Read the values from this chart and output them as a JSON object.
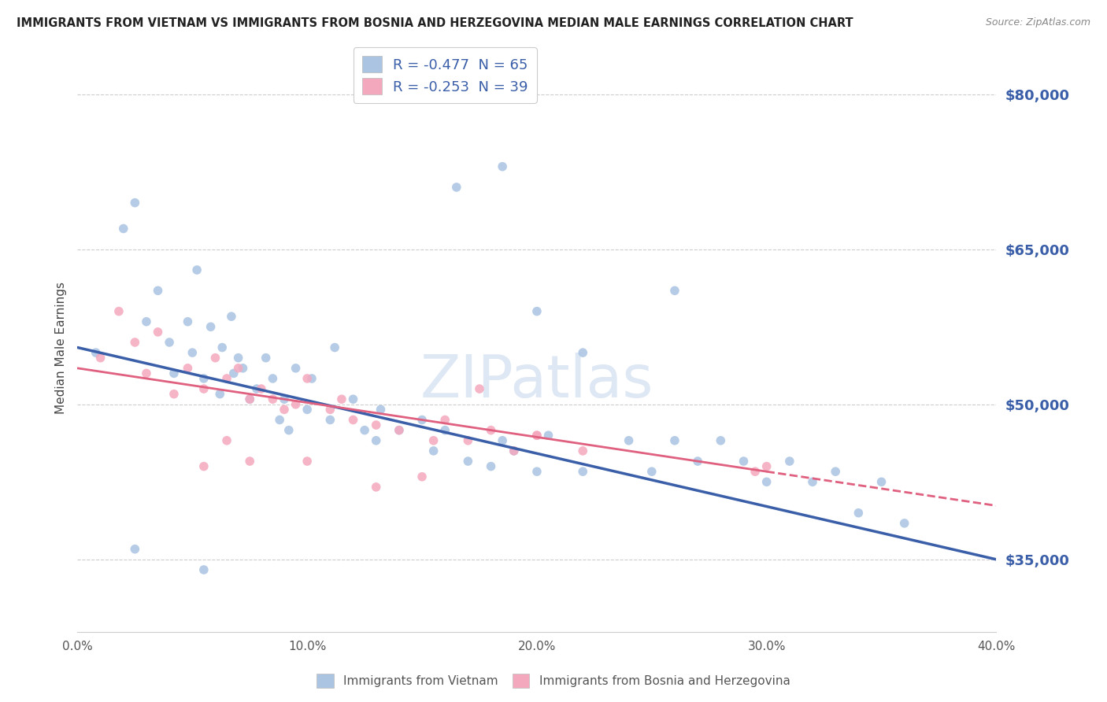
{
  "title": "IMMIGRANTS FROM VIETNAM VS IMMIGRANTS FROM BOSNIA AND HERZEGOVINA MEDIAN MALE EARNINGS CORRELATION CHART",
  "source": "Source: ZipAtlas.com",
  "ylabel": "Median Male Earnings",
  "xlabel": "",
  "legend_label1": "Immigrants from Vietnam",
  "legend_label2": "Immigrants from Bosnia and Herzegovina",
  "R1": -0.477,
  "N1": 65,
  "R2": -0.253,
  "N2": 39,
  "color1": "#aac4e2",
  "color2": "#f4a8be",
  "line_color1": "#3a5ea8",
  "line_color2": "#e06080",
  "xlim": [
    0.0,
    0.4
  ],
  "ylim": [
    28000,
    83000
  ],
  "yticks": [
    35000,
    50000,
    65000,
    80000
  ],
  "xticks": [
    0.0,
    0.1,
    0.2,
    0.3,
    0.4
  ],
  "ytick_labels": [
    "$35,000",
    "$50,000",
    "$65,000",
    "$80,000"
  ],
  "xtick_labels": [
    "0.0%",
    "10.0%",
    "20.0%",
    "30.0%",
    "40.0%"
  ],
  "watermark": "ZIPatlas",
  "background_color": "#ffffff",
  "line1_x0": 0.0,
  "line1_y0": 55500,
  "line1_x1": 0.4,
  "line1_y1": 35000,
  "line2_x0": 0.0,
  "line2_y0": 53500,
  "line2_x1": 0.3,
  "line2_y1": 43500,
  "line2_dash_x0": 0.3,
  "line2_dash_y0": 43500,
  "line2_dash_x1": 0.4,
  "line2_dash_y1": 40200,
  "scatter1_x": [
    0.008,
    0.02,
    0.025,
    0.03,
    0.035,
    0.04,
    0.042,
    0.048,
    0.05,
    0.052,
    0.055,
    0.058,
    0.062,
    0.063,
    0.067,
    0.068,
    0.07,
    0.072,
    0.075,
    0.078,
    0.082,
    0.085,
    0.088,
    0.09,
    0.092,
    0.095,
    0.1,
    0.102,
    0.11,
    0.112,
    0.12,
    0.125,
    0.13,
    0.132,
    0.14,
    0.15,
    0.155,
    0.16,
    0.17,
    0.18,
    0.185,
    0.19,
    0.2,
    0.205,
    0.22,
    0.24,
    0.25,
    0.26,
    0.27,
    0.28,
    0.29,
    0.3,
    0.31,
    0.32,
    0.33,
    0.34,
    0.35,
    0.36,
    0.025,
    0.055,
    0.2,
    0.165,
    0.185,
    0.26,
    0.22
  ],
  "scatter1_y": [
    55000,
    67000,
    69500,
    58000,
    61000,
    56000,
    53000,
    58000,
    55000,
    63000,
    52500,
    57500,
    51000,
    55500,
    58500,
    53000,
    54500,
    53500,
    50500,
    51500,
    54500,
    52500,
    48500,
    50500,
    47500,
    53500,
    49500,
    52500,
    48500,
    55500,
    50500,
    47500,
    46500,
    49500,
    47500,
    48500,
    45500,
    47500,
    44500,
    44000,
    46500,
    45500,
    43500,
    47000,
    43500,
    46500,
    43500,
    46500,
    44500,
    46500,
    44500,
    42500,
    44500,
    42500,
    43500,
    39500,
    42500,
    38500,
    36000,
    34000,
    59000,
    71000,
    73000,
    61000,
    55000
  ],
  "scatter2_x": [
    0.01,
    0.018,
    0.025,
    0.03,
    0.035,
    0.042,
    0.048,
    0.055,
    0.06,
    0.065,
    0.07,
    0.075,
    0.08,
    0.085,
    0.09,
    0.095,
    0.1,
    0.11,
    0.115,
    0.12,
    0.13,
    0.14,
    0.155,
    0.16,
    0.17,
    0.18,
    0.19,
    0.2,
    0.22,
    0.055,
    0.065,
    0.075,
    0.1,
    0.13,
    0.15,
    0.175,
    0.2,
    0.295,
    0.3
  ],
  "scatter2_y": [
    54500,
    59000,
    56000,
    53000,
    57000,
    51000,
    53500,
    51500,
    54500,
    52500,
    53500,
    50500,
    51500,
    50500,
    49500,
    50000,
    52500,
    49500,
    50500,
    48500,
    48000,
    47500,
    46500,
    48500,
    46500,
    47500,
    45500,
    47000,
    45500,
    44000,
    46500,
    44500,
    44500,
    42000,
    43000,
    51500,
    47000,
    43500,
    44000
  ]
}
